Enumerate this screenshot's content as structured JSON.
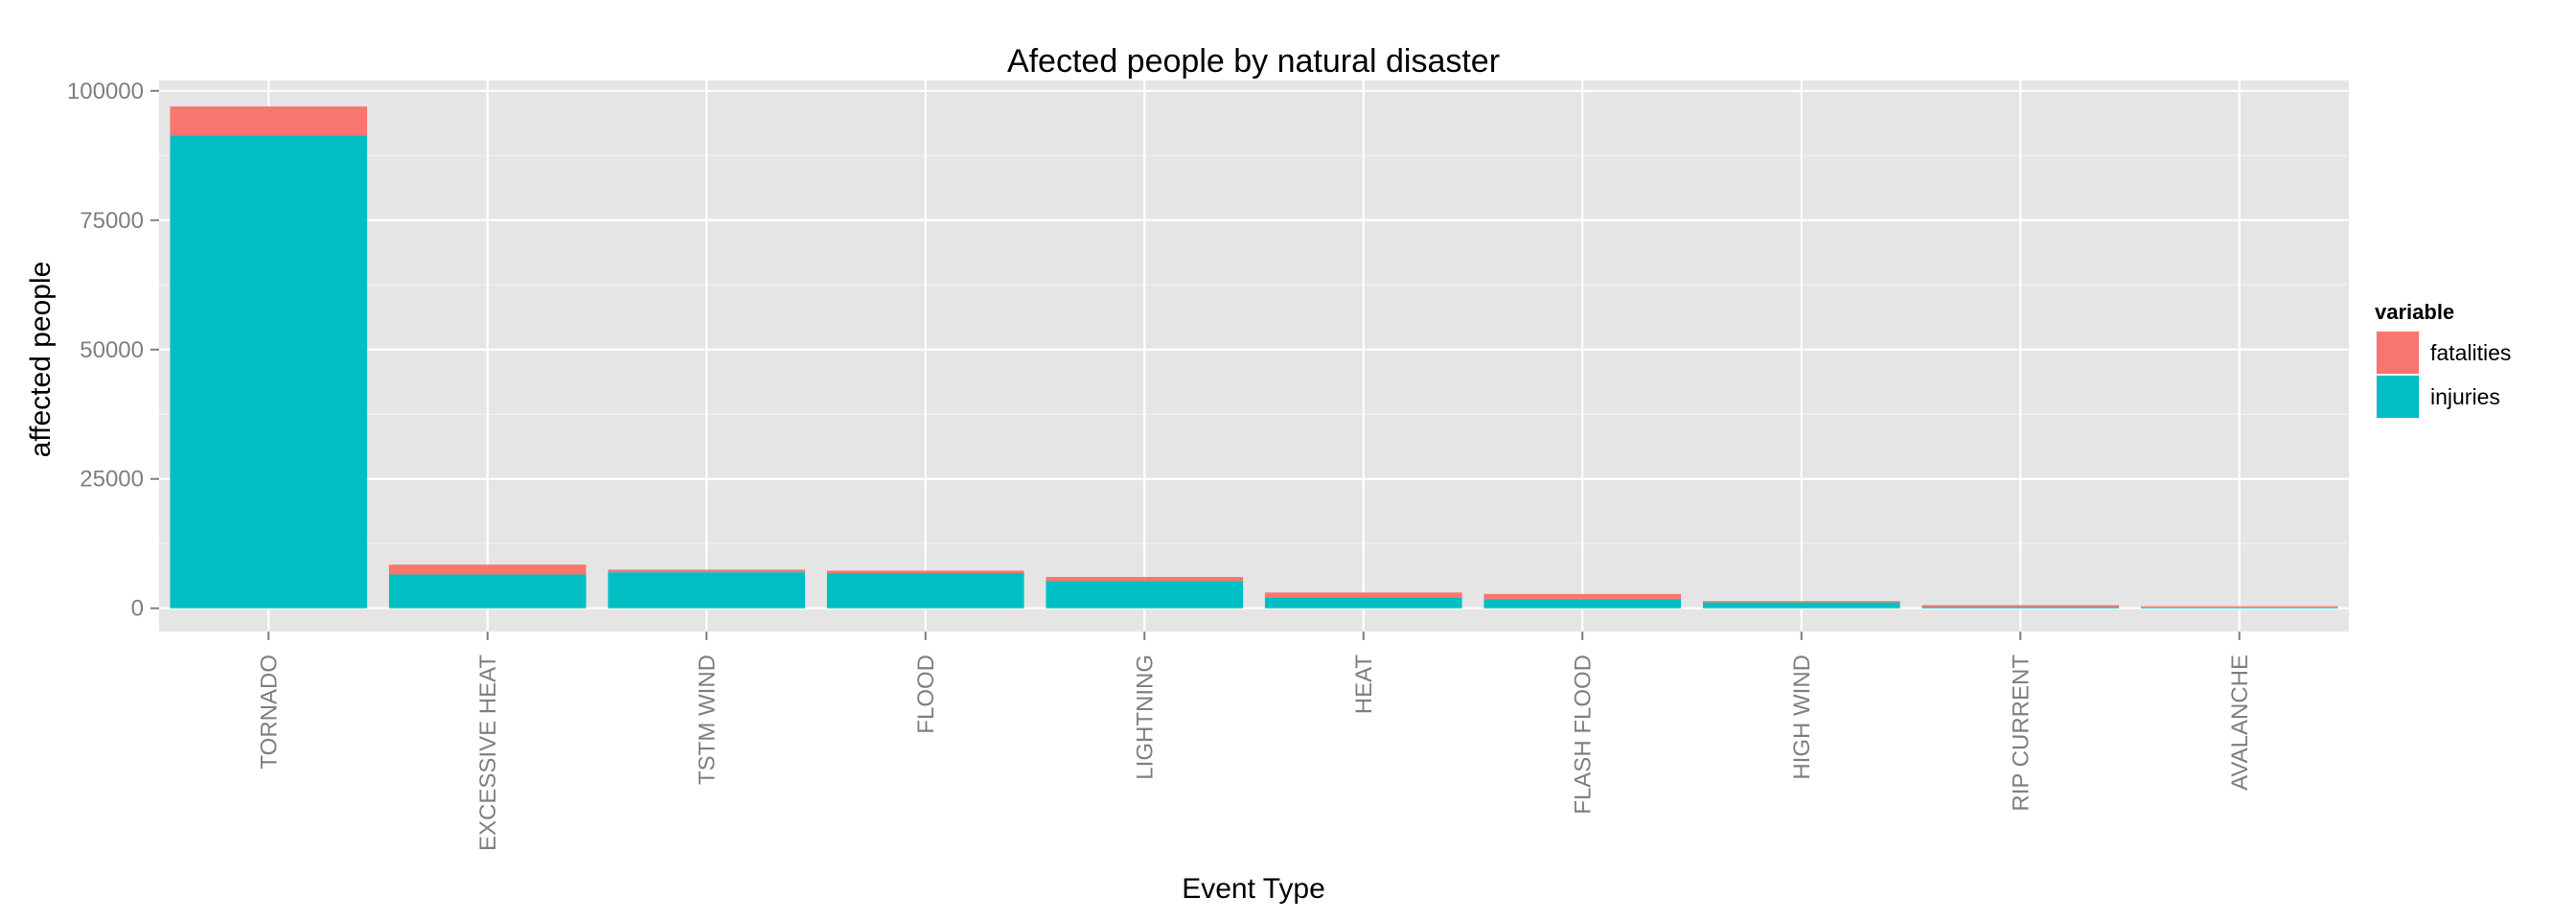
{
  "chart_data": {
    "type": "bar",
    "stacked": true,
    "title": "Afected people by natural disaster",
    "xlabel": "Event Type",
    "ylabel": "affected people",
    "ylim": [
      -4500,
      102000
    ],
    "yticks": [
      0,
      25000,
      50000,
      75000,
      100000
    ],
    "ytick_labels": [
      "0",
      "25000",
      "50000",
      "75000",
      "100000"
    ],
    "grid": true,
    "categories": [
      "TORNADO",
      "EXCESSIVE HEAT",
      "TSTM WIND",
      "FLOOD",
      "LIGHTNING",
      "HEAT",
      "FLASH FLOOD",
      "HIGH WIND",
      "RIP CURRENT",
      "AVALANCHE"
    ],
    "series": [
      {
        "name": "injuries",
        "color": "#00BFC4",
        "values": [
          91346,
          6525,
          6957,
          6789,
          5230,
          2100,
          1777,
          1137,
          232,
          170
        ]
      },
      {
        "name": "fatalities",
        "color": "#F8766D",
        "values": [
          5633,
          1903,
          504,
          470,
          816,
          937,
          978,
          248,
          368,
          224
        ]
      }
    ],
    "legend": {
      "title": "variable",
      "position": "right",
      "entries": [
        {
          "label": "fatalities",
          "color": "#F8766D"
        },
        {
          "label": "injuries",
          "color": "#00BFC4"
        }
      ]
    },
    "panel_background": "#E5E5E5",
    "grid_color": "#FFFFFF"
  }
}
